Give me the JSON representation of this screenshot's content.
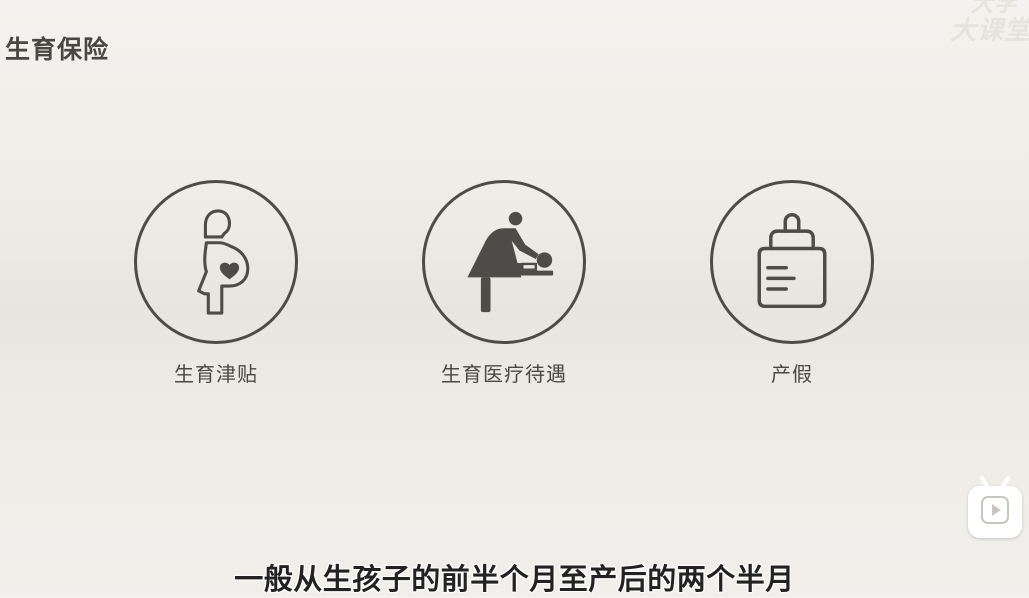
{
  "page": {
    "title": "生育保险",
    "subtitle": "一般从生孩子的前半个月至产后的两个半月"
  },
  "items": [
    {
      "label": "生育津贴",
      "icon": "pregnant-woman-icon"
    },
    {
      "label": "生育医疗待遇",
      "icon": "diaper-changing-icon"
    },
    {
      "label": "产假",
      "icon": "baby-bottle-icon"
    }
  ],
  "colors": {
    "icon_stroke": "#4f4b49",
    "title": "#4a4644",
    "background": "#efece7"
  }
}
